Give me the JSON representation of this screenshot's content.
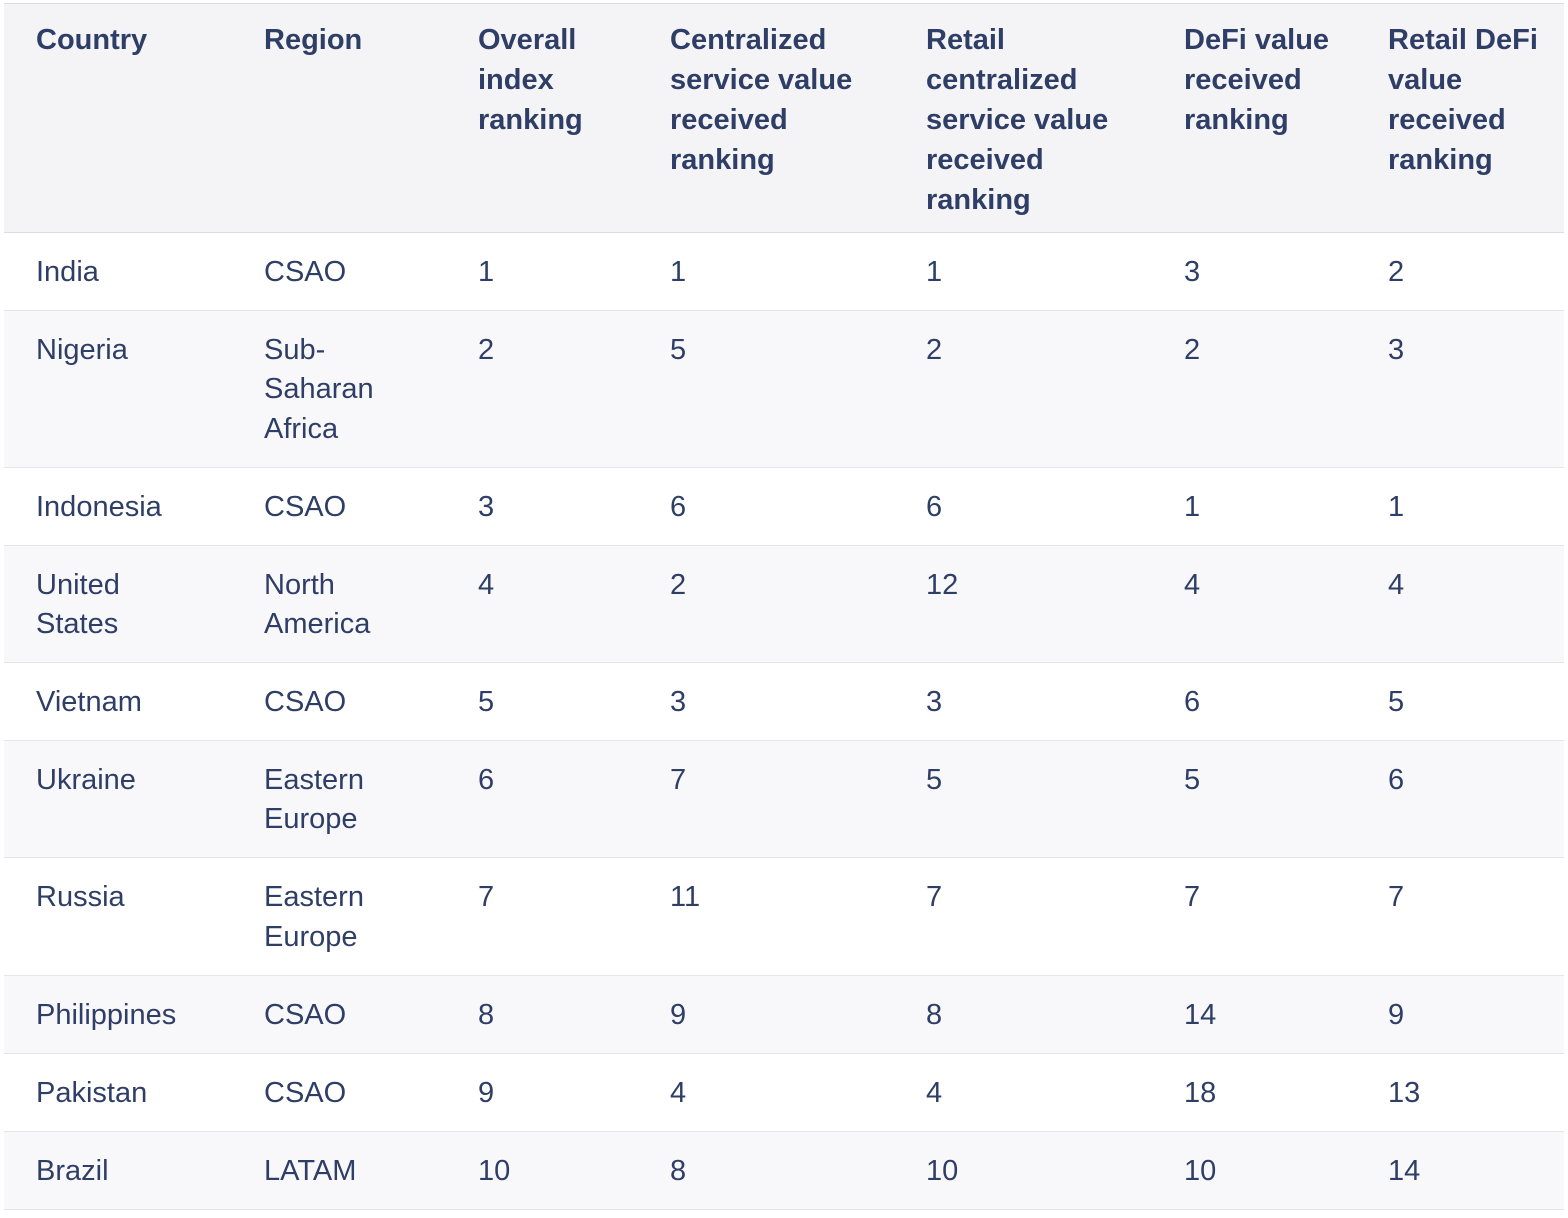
{
  "colors": {
    "text_navy": "#2f3e66",
    "header_background": "#f4f4f6",
    "stripe_background": "#f8f8fa",
    "divider": "#e6e6ea",
    "page_background": "#ffffff"
  },
  "chart_data": {
    "type": "table",
    "columns": [
      "Country",
      "Region",
      "Overall index ranking",
      "Centralized service value received ranking",
      "Retail centralized service value received ranking",
      "DeFi value received ranking",
      "Retail DeFi value received ranking"
    ],
    "rows": [
      [
        "India",
        "CSAO",
        "1",
        "1",
        "1",
        "3",
        "2"
      ],
      [
        "Nigeria",
        "Sub-Saharan Africa",
        "2",
        "5",
        "2",
        "2",
        "3"
      ],
      [
        "Indonesia",
        "CSAO",
        "3",
        "6",
        "6",
        "1",
        "1"
      ],
      [
        "United States",
        "North America",
        "4",
        "2",
        "12",
        "4",
        "4"
      ],
      [
        "Vietnam",
        "CSAO",
        "5",
        "3",
        "3",
        "6",
        "5"
      ],
      [
        "Ukraine",
        "Eastern Europe",
        "6",
        "7",
        "5",
        "5",
        "6"
      ],
      [
        "Russia",
        "Eastern Europe",
        "7",
        "11",
        "7",
        "7",
        "7"
      ],
      [
        "Philippines",
        "CSAO",
        "8",
        "9",
        "8",
        "14",
        "9"
      ],
      [
        "Pakistan",
        "CSAO",
        "9",
        "4",
        "4",
        "18",
        "13"
      ],
      [
        "Brazil",
        "LATAM",
        "10",
        "8",
        "10",
        "10",
        "14"
      ]
    ]
  }
}
